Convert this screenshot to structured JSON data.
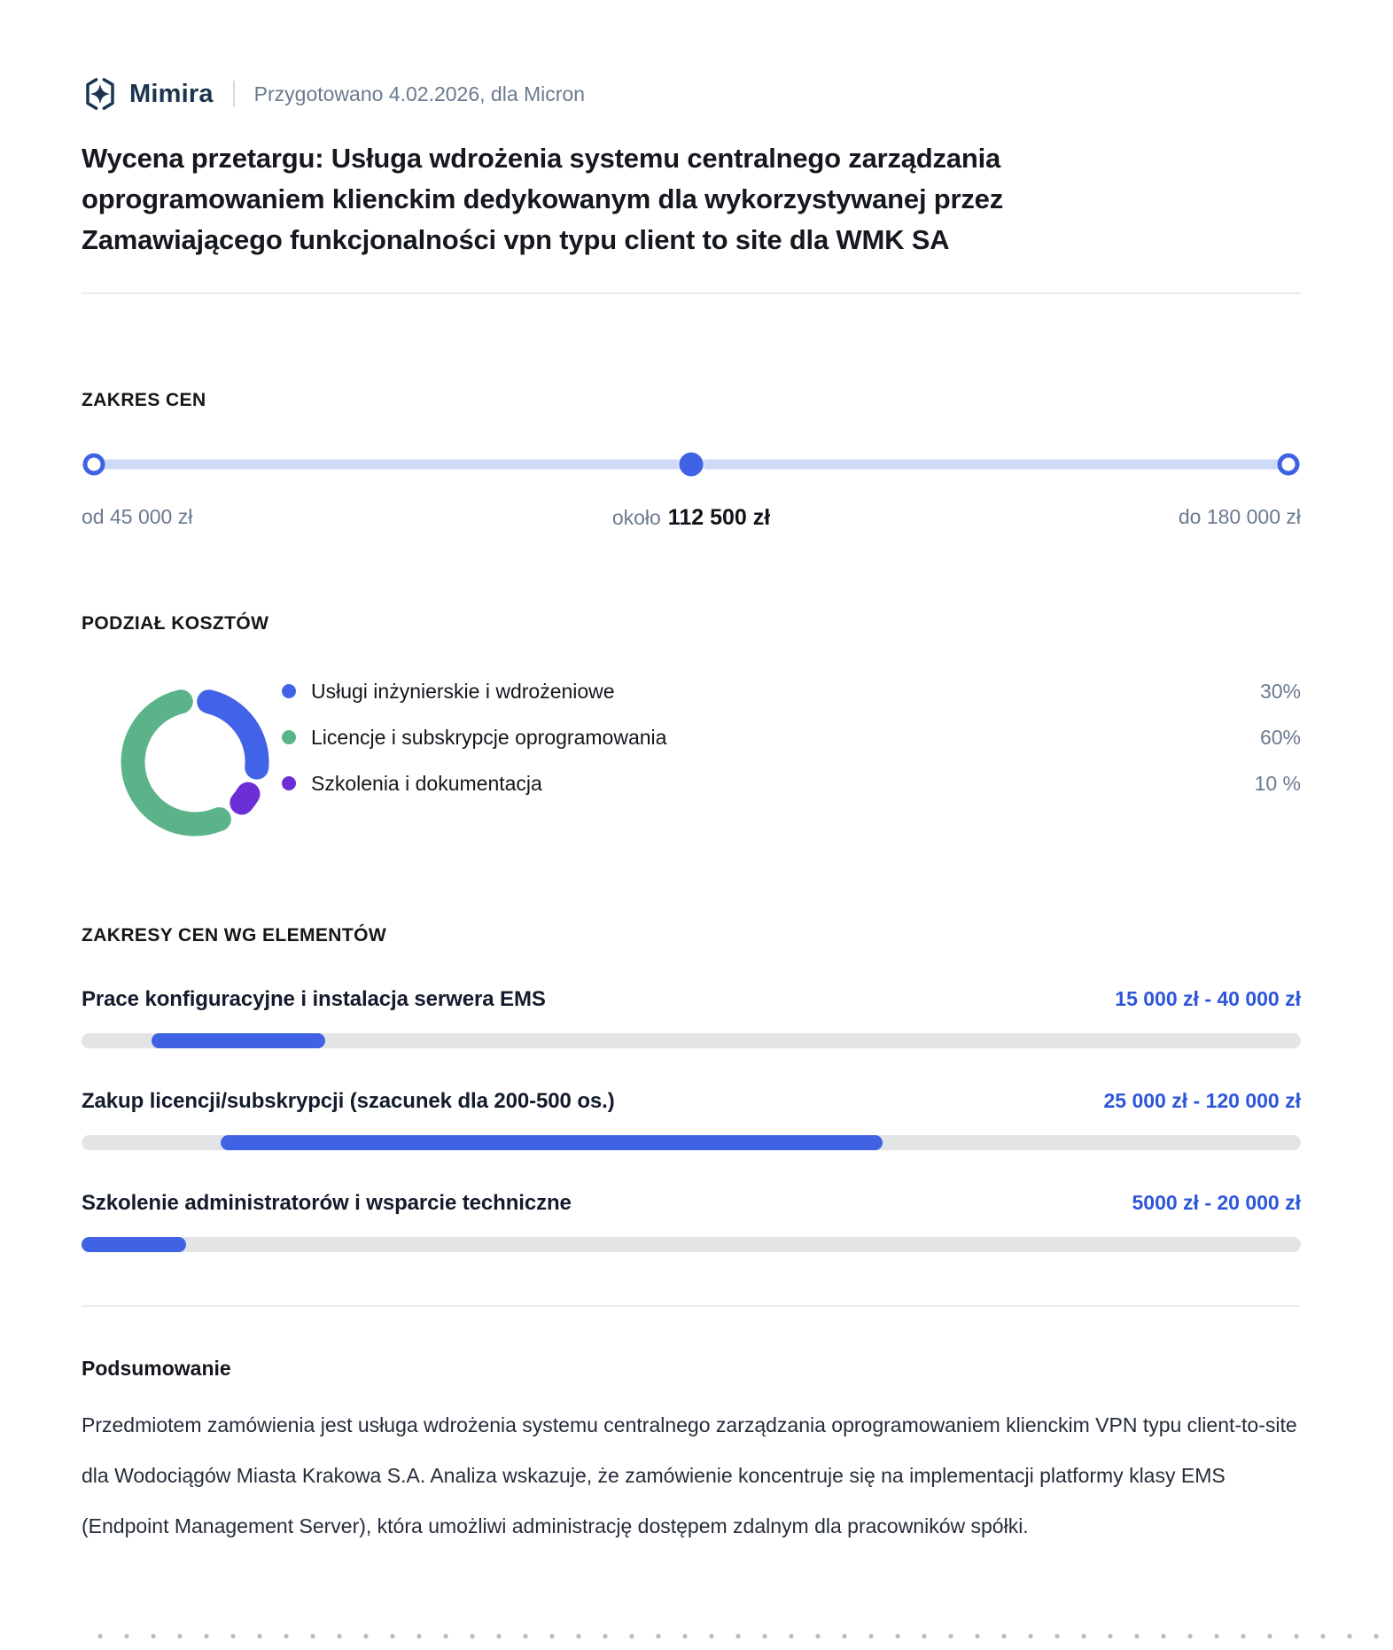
{
  "header": {
    "brand": "Mimira",
    "meta": "Przygotowano 4.02.2026, dla Micron"
  },
  "title": "Wycena przetargu: Usługa wdrożenia systemu centralnego zarządzania oprogramowaniem klienckim dedykowanym dla wykorzystywanej przez Zamawiającego funkcjonalności vpn typu client to site dla WMK SA",
  "price_range": {
    "section_label": "ZAKRES CEN",
    "min_label": "od 45 000 zł",
    "mid_prefix": "około",
    "mid_value": "112 500 zł",
    "max_label": "do 180 000 zł",
    "min_value": 45000,
    "mid_numeric": 112500,
    "max_value": 180000,
    "slider_position_pct": 50
  },
  "chart_data": [
    {
      "type": "pie",
      "donut": true,
      "title": "PODZIAŁ KOSZTÓW",
      "labels": [
        "Usługi inżynierskie i wdrożeniowe",
        "Licencje i subskrypcje oprogramowania",
        "Szkolenia i dokumentacja"
      ],
      "values": [
        30,
        60,
        10
      ],
      "value_labels": [
        "30%",
        "60%",
        "10 %"
      ],
      "colors": [
        "#4263e8",
        "#5ab389",
        "#6c2fd6"
      ],
      "legend_position": "right",
      "clockwise_draw_order": [
        0,
        2,
        1
      ],
      "start_angle_deg": 0
    },
    {
      "type": "bar",
      "orientation": "horizontal-range",
      "title": "ZAKRESY CEN WG ELEMENTÓW",
      "axis_range": {
        "min": 5000,
        "max": 180000
      },
      "items": [
        {
          "label": "Prace konfiguracyjne i instalacja serwera EMS",
          "range_label": "15 000 zł - 40 000 zł",
          "min": 15000,
          "max": 40000
        },
        {
          "label": "Zakup licencji/subskrypcji (szacunek dla 200-500 os.)",
          "range_label": "25 000 zł - 120 000 zł",
          "min": 25000,
          "max": 120000
        },
        {
          "label": "Szkolenie administratorów i wsparcie techniczne",
          "range_label": "5000 zł - 20 000 zł",
          "min": 5000,
          "max": 20000
        }
      ]
    }
  ],
  "summary": {
    "heading": "Podsumowanie",
    "body": "Przedmiotem zamówienia jest usługa wdrożenia systemu centralnego zarządzania oprogramowaniem klienckim VPN typu client-to-site dla Wodociągów Miasta Krakowa S.A. Analiza wskazuje, że zamówienie koncentruje się na implementacji platformy klasy EMS (Endpoint Management Server), która umożliwi administrację dostępem zdalnym dla pracowników spółki."
  },
  "colors": {
    "accent": "#3f63e4",
    "accent_text": "#2e56db",
    "slider_track": "#cdd9f5",
    "bar_track": "#e3e4e6",
    "muted": "#6b7a8f",
    "logo": "#1d3450"
  }
}
